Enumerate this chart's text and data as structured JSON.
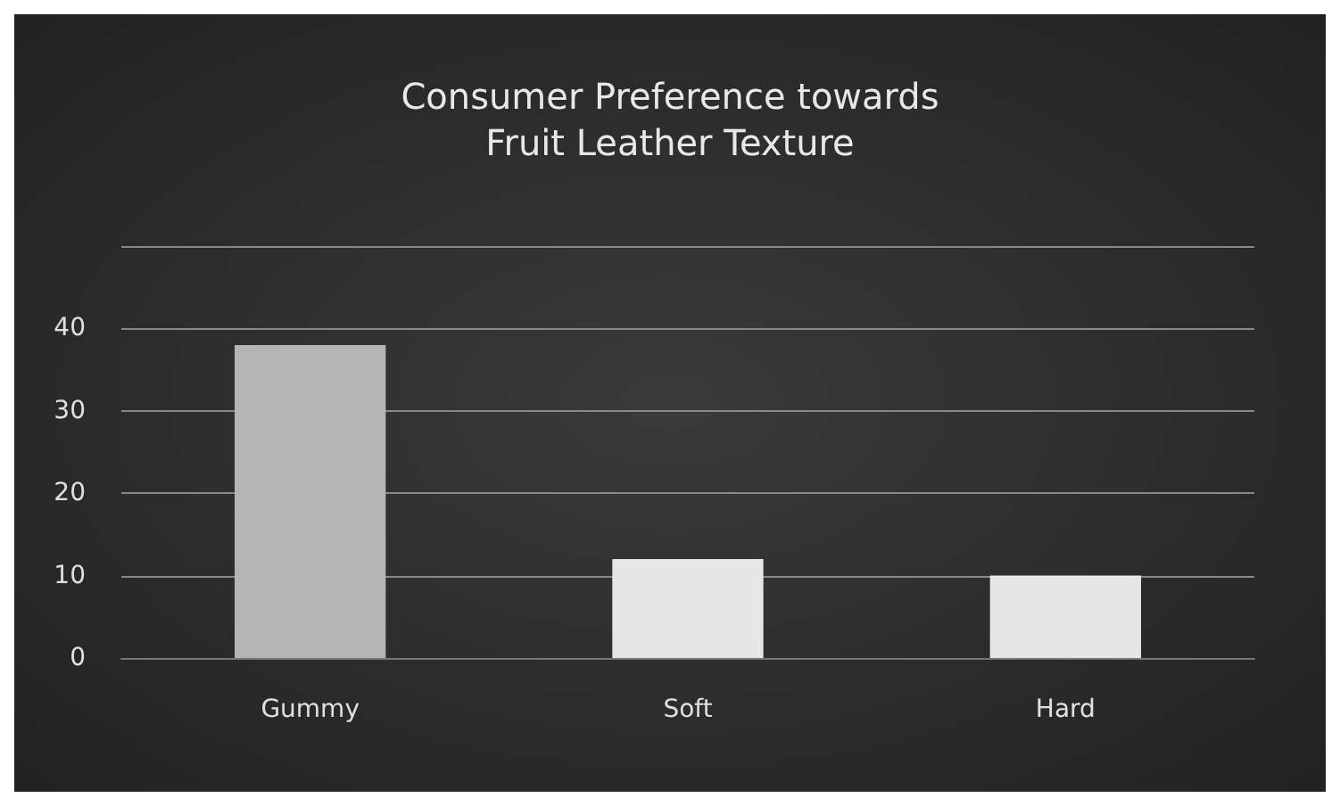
{
  "chart_data": {
    "type": "bar",
    "title": "Consumer Preference towards\nFruit Leather Texture",
    "categories": [
      "Gummy",
      "Soft",
      "Hard"
    ],
    "values": [
      38,
      12,
      10
    ],
    "colors": [
      "#b4b4b4",
      "#e6e6e6",
      "#e6e6e6"
    ],
    "ylim": [
      0,
      50
    ],
    "yticks": [
      0,
      10,
      20,
      30,
      40,
      {
        "value": 50,
        "label": null
      }
    ],
    "grid": "y"
  }
}
